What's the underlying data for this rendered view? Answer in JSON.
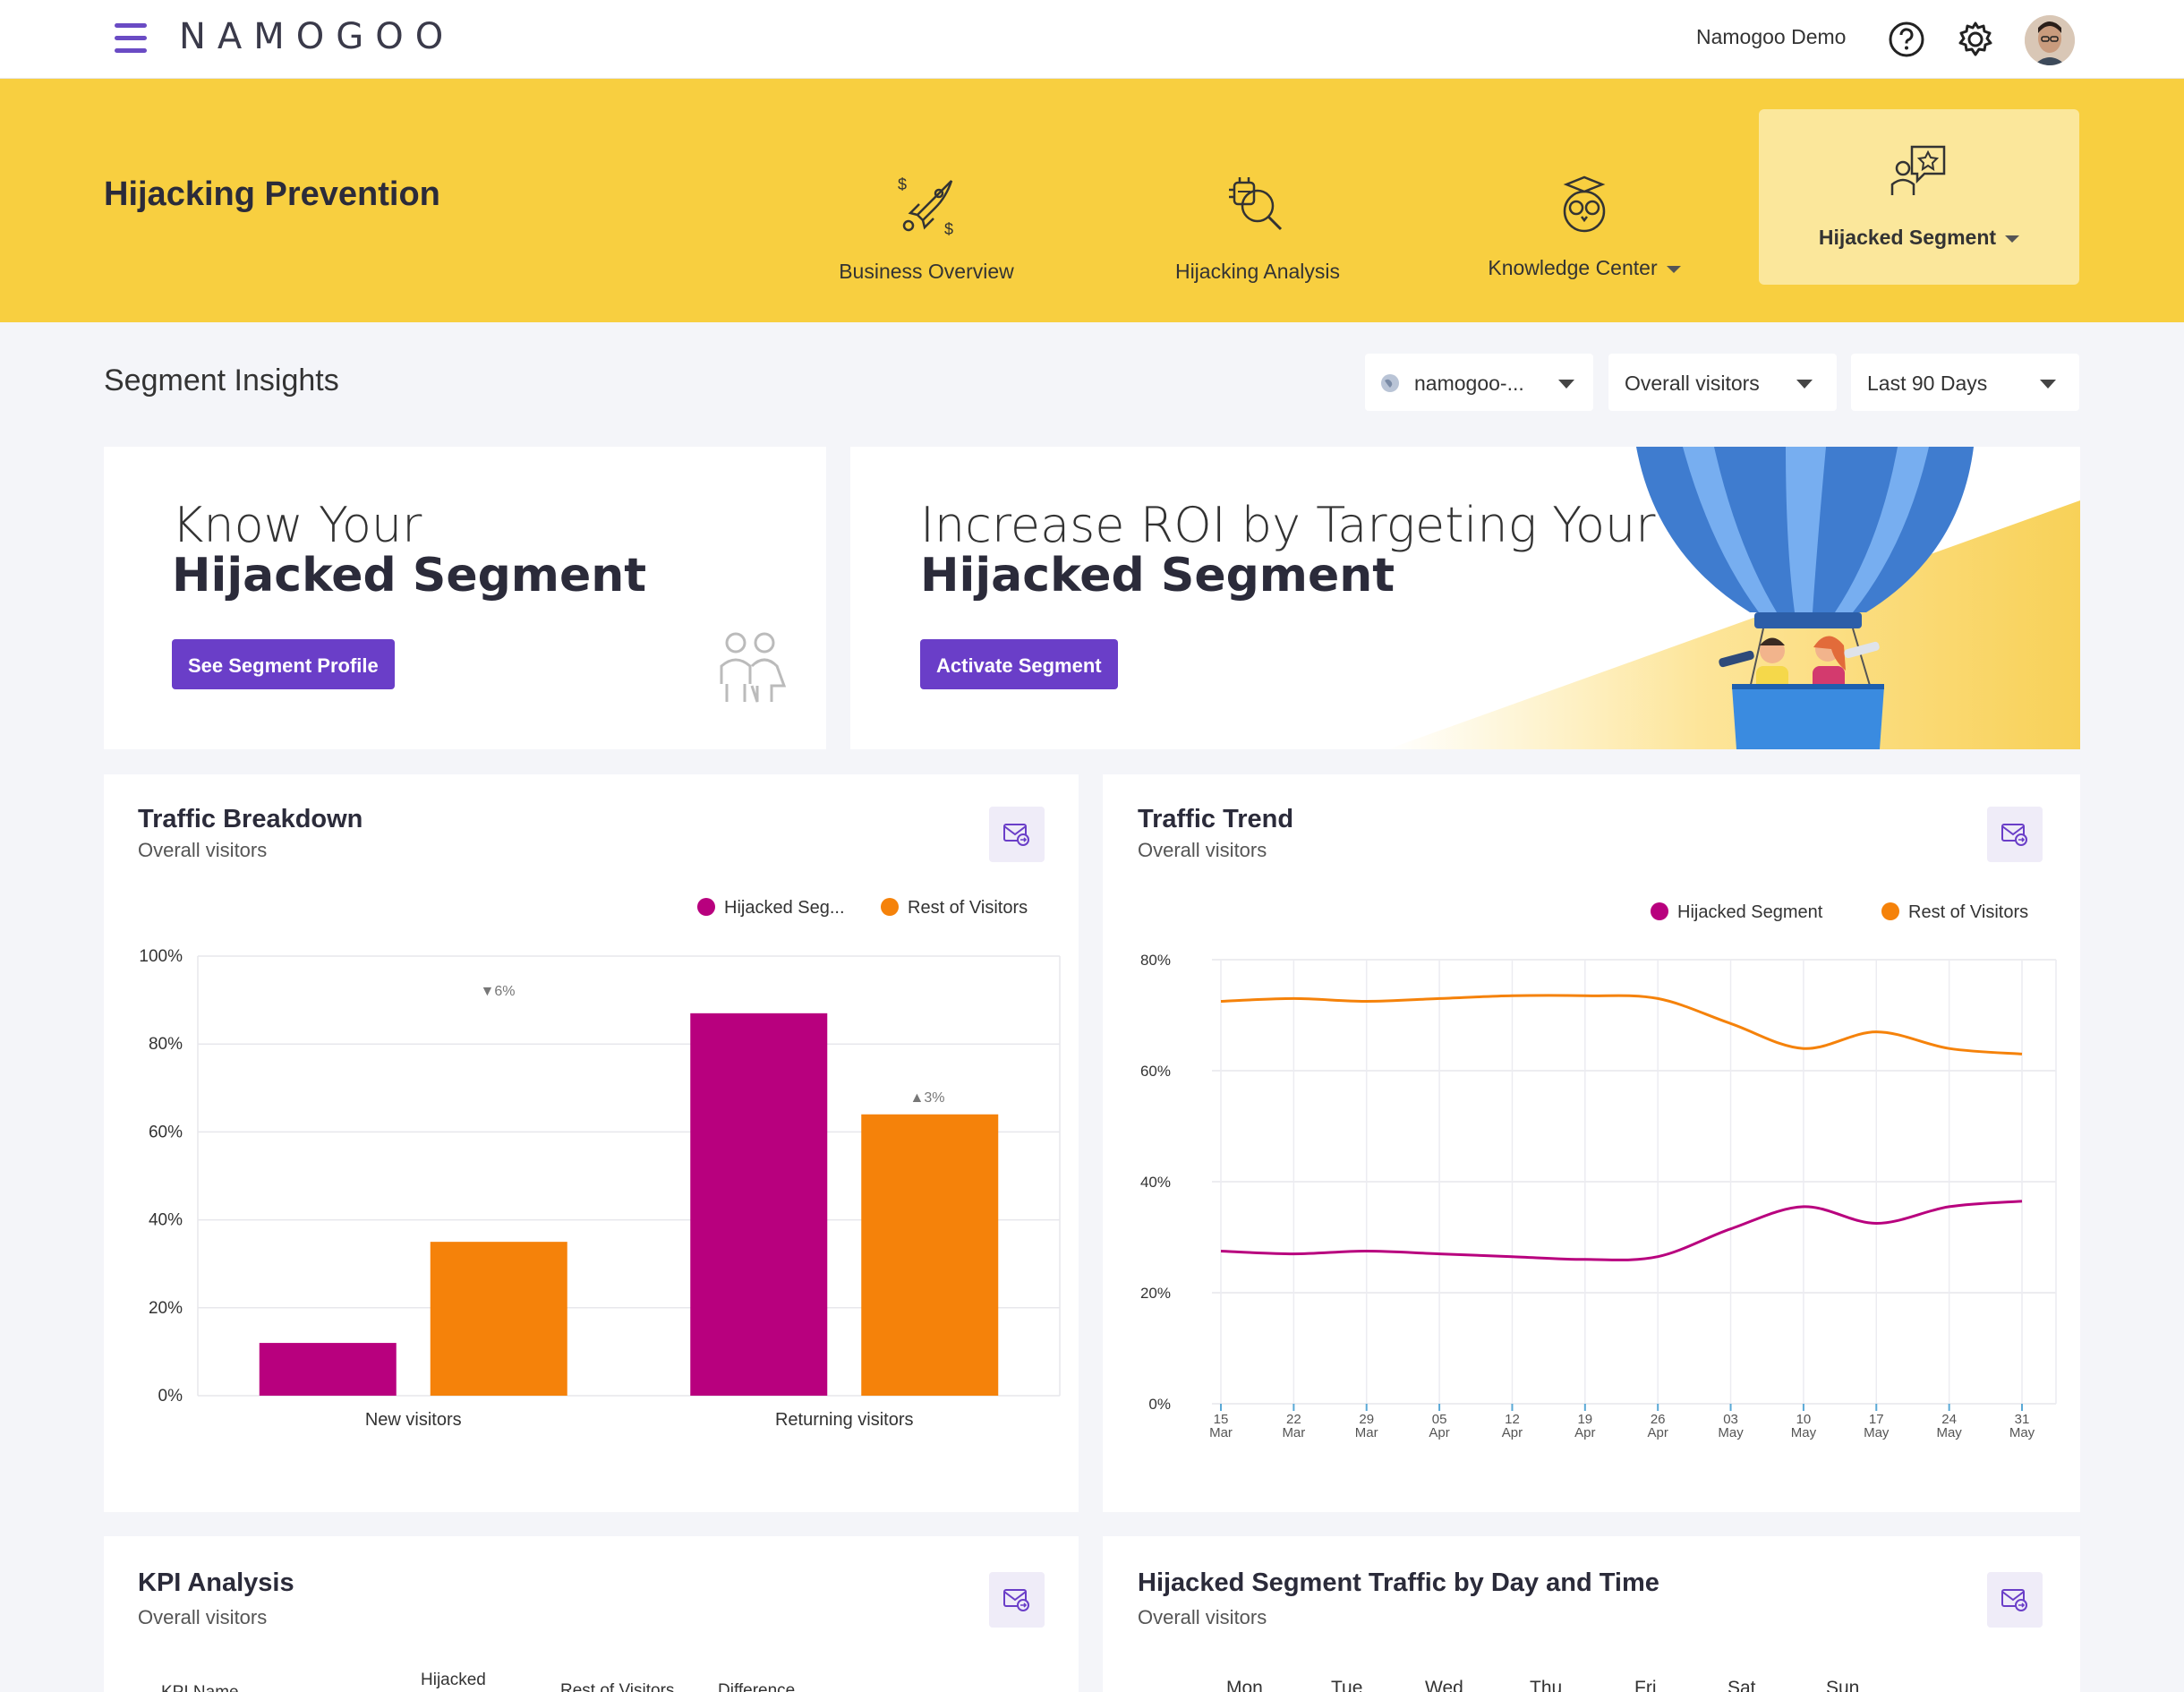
{
  "topbar": {
    "logo": "NAMOGOO",
    "user_name": "Namogoo Demo",
    "help_icon": "question-circle-icon",
    "settings_icon": "gear-icon",
    "avatar": "user-avatar"
  },
  "banner": {
    "title": "Hijacking Prevention",
    "nav": [
      {
        "label": "Business Overview",
        "icon": "rocket-dollar-icon"
      },
      {
        "label": "Hijacking Analysis",
        "icon": "bug-magnifier-icon"
      },
      {
        "label": "Knowledge Center",
        "icon": "owl-icon"
      },
      {
        "label": "Hijacked Segment",
        "icon": "person-star-icon"
      }
    ]
  },
  "filters": {
    "title": "Segment Insights",
    "site": "namogoo-...",
    "visitors": "Overall visitors",
    "range": "Last 90 Days"
  },
  "promo_left": {
    "line1": "Know Your",
    "line2": "Hijacked Segment",
    "button": "See Segment Profile"
  },
  "promo_right": {
    "line1": "Increase ROI by Targeting Your",
    "line2": "Hijacked Segment",
    "button": "Activate Segment"
  },
  "traffic_breakdown": {
    "title": "Traffic Breakdown",
    "subtitle": "Overall visitors",
    "legend": [
      "Hijacked Seg...",
      "Rest of Visitors"
    ],
    "y_ticks": [
      "100%",
      "80%",
      "60%",
      "40%",
      "20%",
      "0%"
    ],
    "annotations": [
      "▼6%",
      "▲3%"
    ]
  },
  "traffic_trend": {
    "title": "Traffic Trend",
    "subtitle": "Overall visitors",
    "legend": [
      "Hijacked Segment",
      "Rest of Visitors"
    ],
    "y_ticks": [
      "80%",
      "60%",
      "40%",
      "20%",
      "0%"
    ]
  },
  "kpi": {
    "title": "KPI Analysis",
    "subtitle": "Overall visitors",
    "columns": [
      "KPI Name",
      "Hijacked",
      "Rest of Visitors",
      "Difference"
    ]
  },
  "day_time": {
    "title": "Hijacked Segment Traffic by Day and Time",
    "subtitle": "Overall visitors",
    "days": [
      "Mon",
      "Tue",
      "Wed",
      "Thu",
      "Fri",
      "Sat",
      "Sun"
    ]
  },
  "colors": {
    "hijacked": "#b8007e",
    "rest": "#f5820a",
    "accent": "#6a3ec8",
    "banner": "#f8cf40"
  },
  "chart_data": [
    {
      "type": "bar",
      "title": "Traffic Breakdown",
      "categories": [
        "New visitors",
        "Returning visitors"
      ],
      "series": [
        {
          "name": "Hijacked Seg...",
          "values": [
            12,
            87
          ]
        },
        {
          "name": "Rest of Visitors",
          "values": [
            35,
            64
          ]
        }
      ],
      "ylim": [
        0,
        100
      ],
      "y_unit": "%",
      "legend": "top-right",
      "grid": true
    },
    {
      "type": "line",
      "title": "Traffic Trend",
      "x": [
        "15 Mar",
        "22 Mar",
        "29 Mar",
        "05 Apr",
        "12 Apr",
        "19 Apr",
        "26 Apr",
        "03 May",
        "10 May",
        "17 May",
        "24 May",
        "31 May"
      ],
      "series": [
        {
          "name": "Hijacked Segment",
          "values": [
            27.5,
            27,
            27.5,
            27,
            26.5,
            26,
            26.5,
            31.5,
            35.5,
            32.5,
            35.5,
            36.5
          ]
        },
        {
          "name": "Rest of Visitors",
          "values": [
            72.5,
            73,
            72.5,
            73,
            73.5,
            73.5,
            73,
            68.5,
            64,
            67,
            64,
            63
          ]
        }
      ],
      "ylim": [
        0,
        80
      ],
      "y_unit": "%",
      "legend": "top-right",
      "grid": true
    }
  ]
}
